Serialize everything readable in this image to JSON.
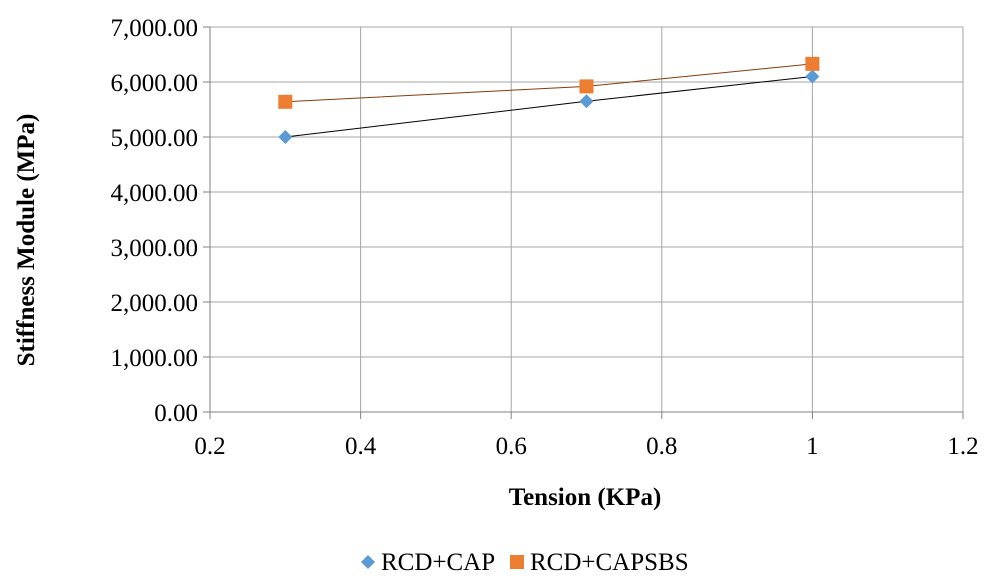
{
  "chart_data": {
    "type": "scatter",
    "xlabel": "Tension (KPa)",
    "ylabel": "Stiffness Module (MPa)",
    "xlim": [
      0.2,
      1.2
    ],
    "ylim": [
      0,
      7000
    ],
    "x_ticks": [
      0.2,
      0.4,
      0.6,
      0.8,
      1,
      1.2
    ],
    "x_tick_labels": [
      "0.2",
      "0.4",
      "0.6",
      "0.8",
      "1",
      "1.2"
    ],
    "y_ticks": [
      0,
      1000,
      2000,
      3000,
      4000,
      5000,
      6000,
      7000
    ],
    "y_tick_labels": [
      "0.00",
      "1,000.00",
      "2,000.00",
      "3,000.00",
      "4,000.00",
      "5,000.00",
      "6,000.00",
      "7,000.00"
    ],
    "grid": true,
    "legend_position": "bottom",
    "series": [
      {
        "name": "RCD+CAP",
        "marker": "diamond",
        "color": "#5B9BD5",
        "line_color": "#000000",
        "x": [
          0.3,
          0.7,
          1.0
        ],
        "y": [
          5000,
          5650,
          6100
        ]
      },
      {
        "name": "RCD+CAPSBS",
        "marker": "square",
        "color": "#ED7D31",
        "line_color": "#843C0C",
        "x": [
          0.3,
          0.7,
          1.0
        ],
        "y": [
          5640,
          5920,
          6330
        ]
      }
    ]
  }
}
